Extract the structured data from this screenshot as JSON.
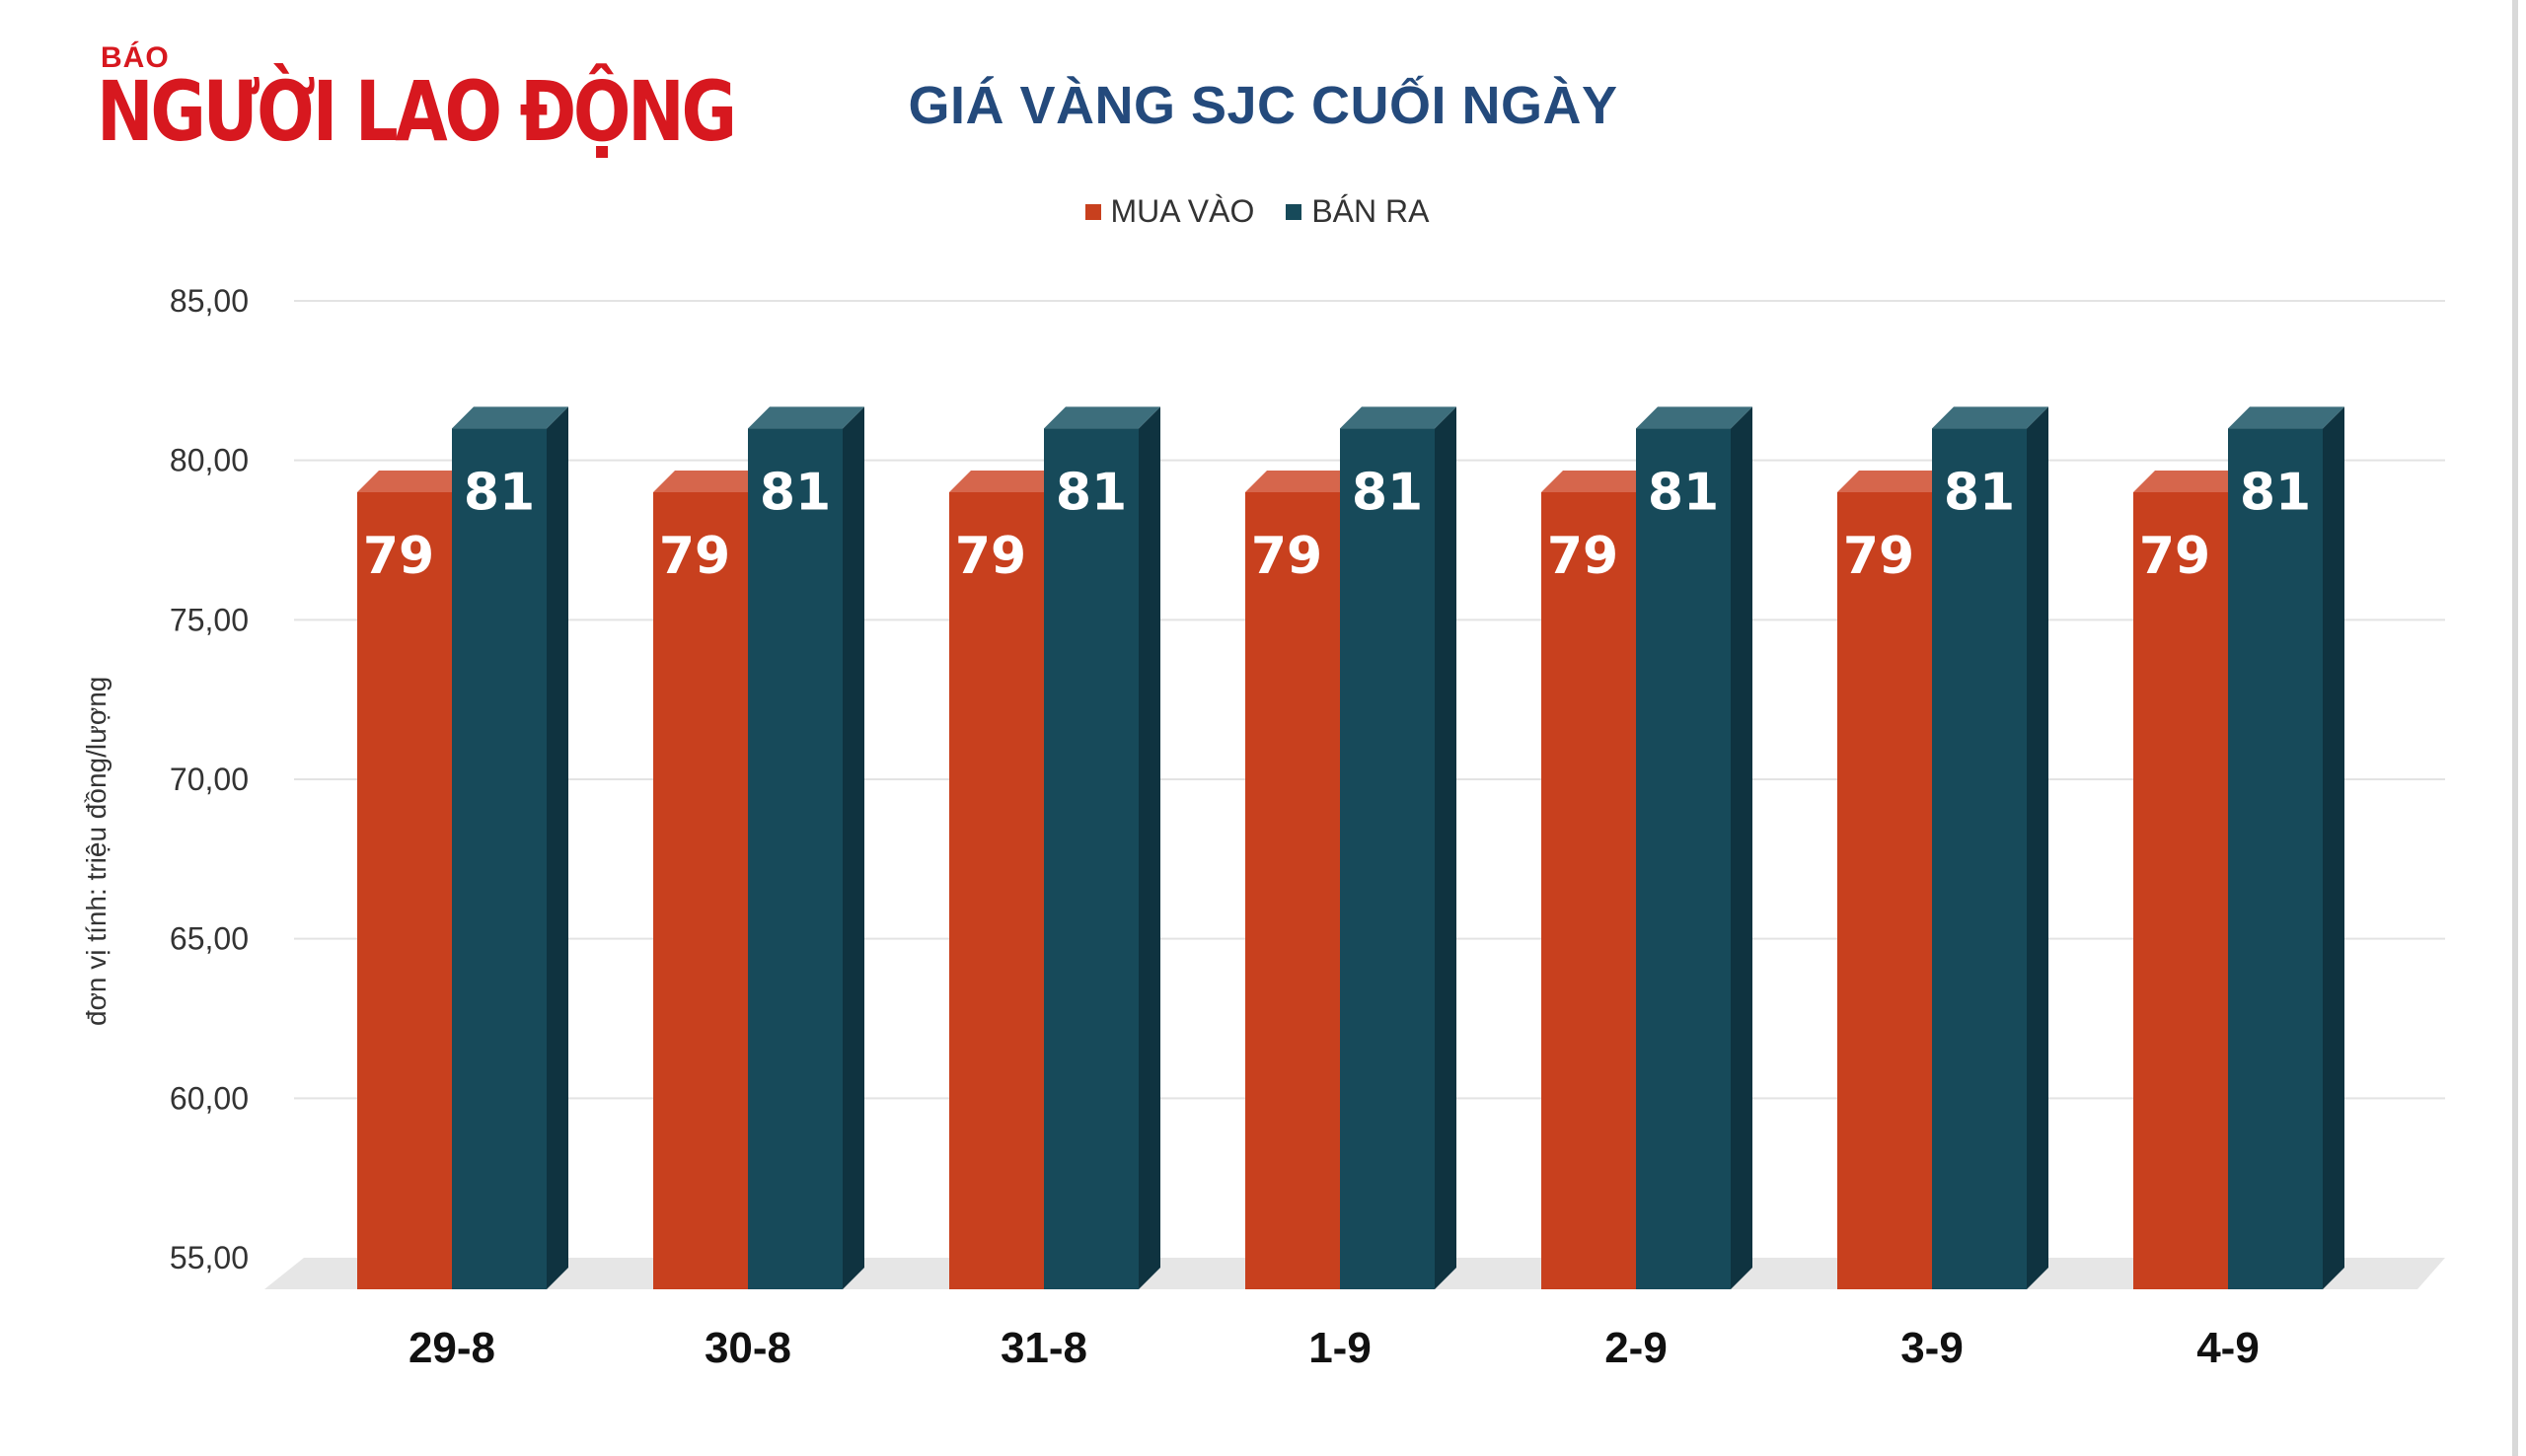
{
  "logo": {
    "small": "BÁO",
    "big": "NGƯỜI LAO ĐỘNG"
  },
  "chart_data": {
    "type": "bar",
    "title": "GIÁ VÀNG SJC CUỐI NGÀY",
    "ylabel": "đơn vị tính: triệu đồng/lượng",
    "ylim": [
      55,
      85
    ],
    "yticks": [
      "85,00",
      "80,00",
      "75,00",
      "70,00",
      "65,00",
      "60,00",
      "55,00"
    ],
    "yticks_values": [
      85,
      80,
      75,
      70,
      65,
      60,
      55
    ],
    "categories": [
      "29-8",
      "30-8",
      "31-8",
      "1-9",
      "2-9",
      "3-9",
      "4-9"
    ],
    "series": [
      {
        "name": "MUA VÀO",
        "color": "#c8401e",
        "values": [
          79,
          79,
          79,
          79,
          79,
          79,
          79
        ],
        "labels": [
          "79",
          "79",
          "79",
          "79",
          "79",
          "79",
          "79"
        ]
      },
      {
        "name": "BÁN RA",
        "color": "#174a5a",
        "values": [
          81,
          81,
          81,
          81,
          81,
          81,
          81
        ],
        "labels": [
          "81",
          "81",
          "81",
          "81",
          "81",
          "81",
          "81"
        ]
      }
    ],
    "grid": true,
    "legend": "top-center"
  }
}
